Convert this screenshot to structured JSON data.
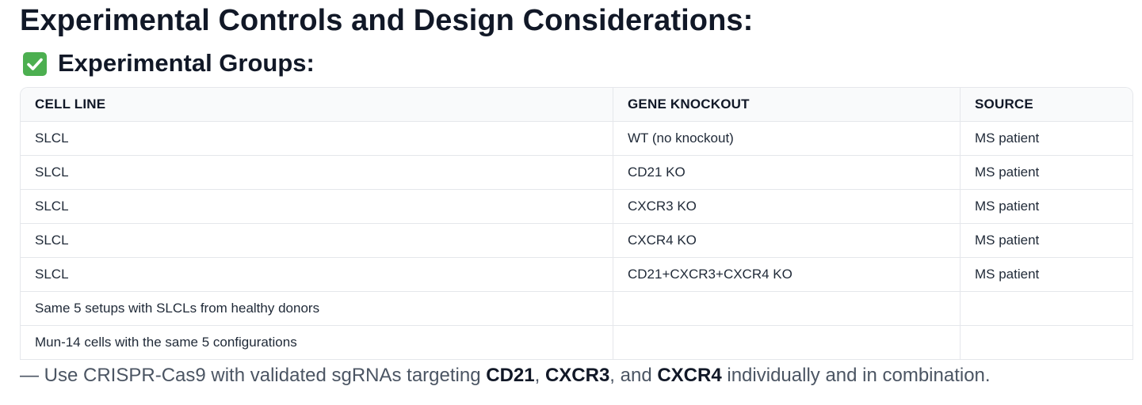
{
  "heading": "Experimental Controls and Design Considerations:",
  "subheading": "Experimental Groups:",
  "icons": {
    "subheading_icon": "check-mark-box-icon",
    "subheading_icon_color": "#4caf50"
  },
  "table": {
    "headers": [
      "CELL LINE",
      "GENE KNOCKOUT",
      "SOURCE"
    ],
    "rows": [
      [
        "SLCL",
        "WT (no knockout)",
        "MS patient"
      ],
      [
        "SLCL",
        "CD21 KO",
        "MS patient"
      ],
      [
        "SLCL",
        "CXCR3 KO",
        "MS patient"
      ],
      [
        "SLCL",
        "CXCR4 KO",
        "MS patient"
      ],
      [
        "SLCL",
        "CD21+CXCR3+CXCR4 KO",
        "MS patient"
      ],
      [
        "Same 5 setups with SLCLs from healthy donors",
        "",
        ""
      ],
      [
        "Mun-14 cells with the same 5 configurations",
        "",
        ""
      ]
    ]
  },
  "note": {
    "prefix": "— Use CRISPR-Cas9 with validated sgRNAs targeting ",
    "gene1": "CD21",
    "sep1": ", ",
    "gene2": "CXCR3",
    "sep2": ", and ",
    "gene3": "CXCR4",
    "suffix": " individually and in combination."
  }
}
